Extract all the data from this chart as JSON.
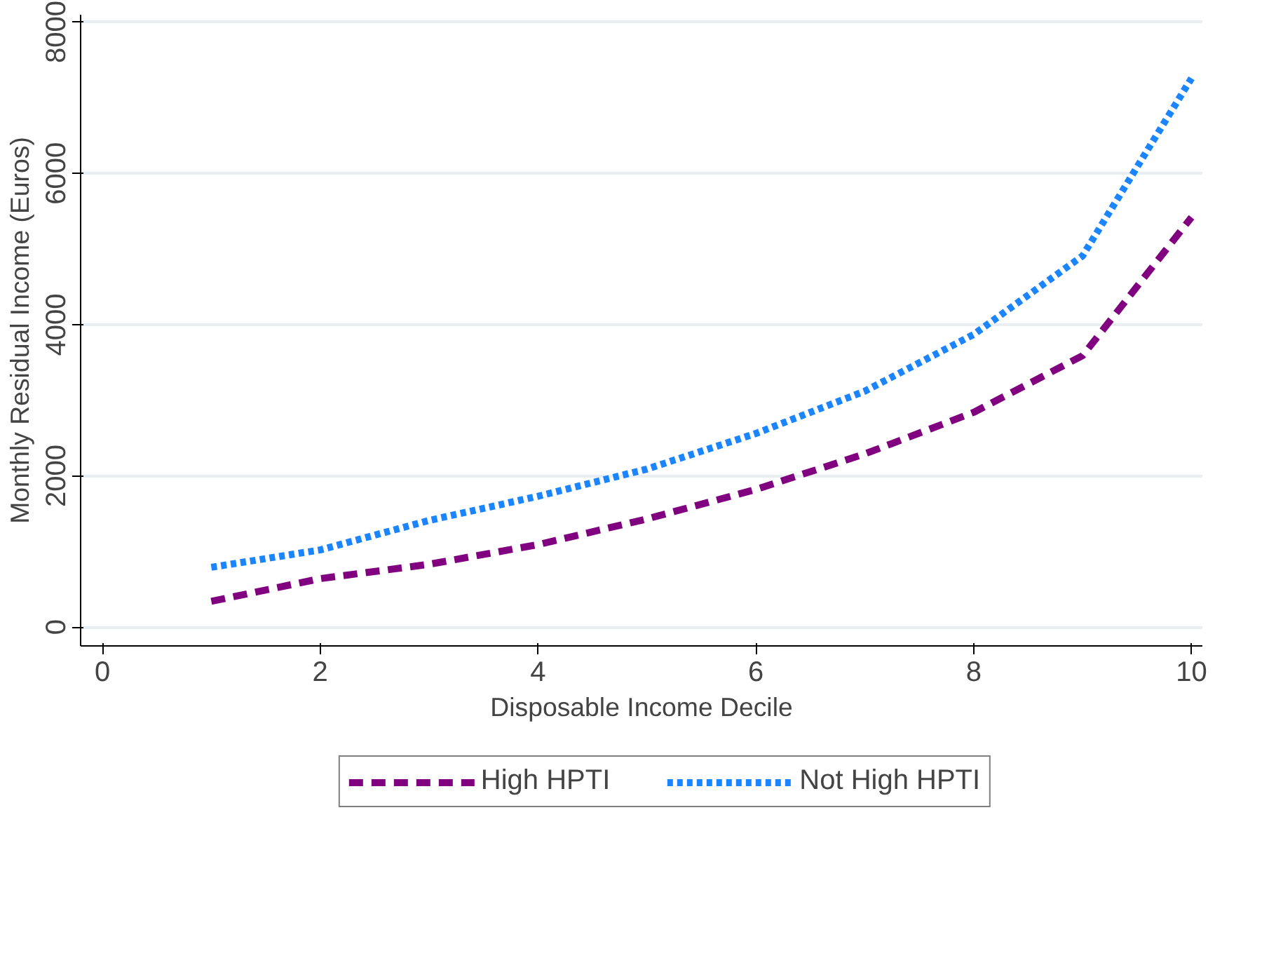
{
  "chart_data": {
    "type": "line",
    "xlabel": "Disposable Income Decile",
    "ylabel": "Monthly Residual Income (Euros)",
    "x": [
      1,
      2,
      3,
      4,
      5,
      6,
      7,
      8,
      9,
      10
    ],
    "series": [
      {
        "name": "High HPTI",
        "color": "#800080",
        "line_style": "dashed",
        "values": [
          340,
          640,
          830,
          1090,
          1430,
          1820,
          2290,
          2840,
          3590,
          5420
        ]
      },
      {
        "name": "Not High HPTI",
        "color": "#1a85ff",
        "line_style": "dotted",
        "values": [
          790,
          1020,
          1410,
          1730,
          2090,
          2560,
          3120,
          3870,
          4910,
          7260
        ]
      }
    ],
    "xlim": [
      -0.2,
      10.1
    ],
    "ylim": [
      -250,
      8100
    ],
    "xticks": [
      0,
      2,
      4,
      6,
      8,
      10
    ],
    "yticks": [
      0,
      2000,
      4000,
      6000,
      8000
    ],
    "grid": "y",
    "legend": "bottom",
    "marker": "none"
  }
}
